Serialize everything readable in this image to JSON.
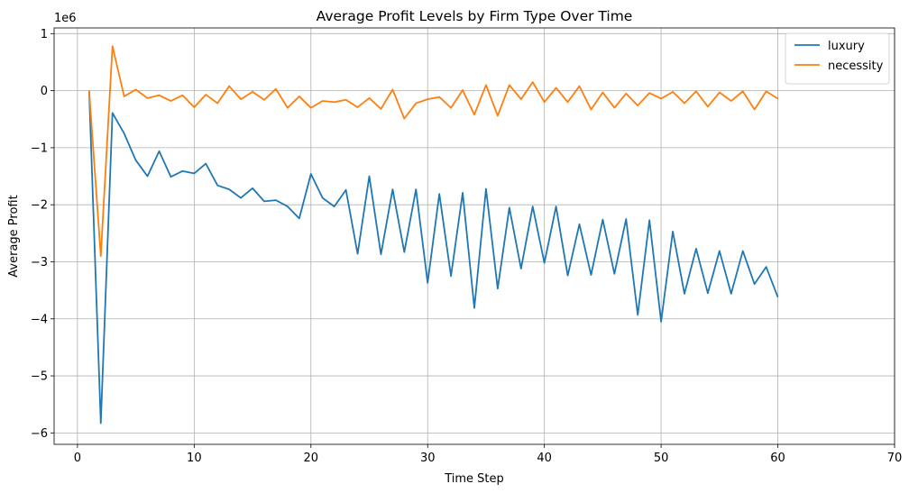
{
  "chart_data": {
    "type": "line",
    "title": "Average Profit Levels by Firm Type Over Time",
    "xlabel": "Time Step",
    "ylabel": "Average Profit",
    "y_offset_text": "1e6",
    "xlim": [
      -2,
      70
    ],
    "ylim": [
      -6.2,
      1.1
    ],
    "x_ticks": [
      0,
      10,
      20,
      30,
      40,
      50,
      60,
      70
    ],
    "y_ticks": [
      1,
      0,
      -1,
      -2,
      -3,
      -4,
      -5,
      -6
    ],
    "x_tick_labels": [
      "0",
      "10",
      "20",
      "30",
      "40",
      "50",
      "60",
      "70"
    ],
    "y_tick_labels": [
      "1",
      "0",
      "−1",
      "−2",
      "−3",
      "−4",
      "−5",
      "−6"
    ],
    "grid": true,
    "legend_position": "top-right",
    "x": [
      1,
      2,
      3,
      4,
      5,
      6,
      7,
      8,
      9,
      10,
      11,
      12,
      13,
      14,
      15,
      16,
      17,
      18,
      19,
      20,
      21,
      22,
      23,
      24,
      25,
      26,
      27,
      28,
      29,
      30,
      31,
      32,
      33,
      34,
      35,
      36,
      37,
      38,
      39,
      40,
      41,
      42,
      43,
      44,
      45,
      46,
      47,
      48,
      49,
      50,
      51,
      52,
      53,
      54,
      55,
      56,
      57,
      58,
      59,
      60
    ],
    "series": [
      {
        "name": "luxury",
        "color": "#1f77b4",
        "values": [
          0.0,
          -5.83,
          -0.39,
          -0.75,
          -1.22,
          -1.5,
          -1.06,
          -1.51,
          -1.41,
          -1.45,
          -1.28,
          -1.66,
          -1.73,
          -1.88,
          -1.71,
          -1.94,
          -1.92,
          -2.03,
          -2.24,
          -1.46,
          -1.88,
          -2.03,
          -1.74,
          -2.86,
          -1.5,
          -2.87,
          -1.73,
          -2.83,
          -1.73,
          -3.37,
          -1.81,
          -3.25,
          -1.79,
          -3.81,
          -1.72,
          -3.47,
          -2.05,
          -3.12,
          -2.03,
          -3.02,
          -2.03,
          -3.24,
          -2.34,
          -3.23,
          -2.26,
          -3.21,
          -2.25,
          -3.93,
          -2.27,
          -4.05,
          -2.47,
          -3.56,
          -2.77,
          -3.55,
          -2.81,
          -3.56,
          -2.81,
          -3.39,
          -3.09,
          -3.62
        ]
      },
      {
        "name": "necessity",
        "color": "#ff7f0e",
        "values": [
          0.0,
          -2.9,
          0.78,
          -0.1,
          0.02,
          -0.13,
          -0.08,
          -0.18,
          -0.08,
          -0.29,
          -0.07,
          -0.22,
          0.08,
          -0.15,
          -0.02,
          -0.16,
          0.03,
          -0.3,
          -0.1,
          -0.3,
          -0.18,
          -0.2,
          -0.16,
          -0.29,
          -0.13,
          -0.32,
          0.02,
          -0.49,
          -0.22,
          -0.15,
          -0.11,
          -0.3,
          0.01,
          -0.42,
          0.1,
          -0.44,
          0.1,
          -0.15,
          0.15,
          -0.2,
          0.05,
          -0.2,
          0.08,
          -0.33,
          -0.03,
          -0.3,
          -0.05,
          -0.26,
          -0.04,
          -0.14,
          -0.02,
          -0.22,
          -0.01,
          -0.28,
          -0.03,
          -0.18,
          -0.01,
          -0.33,
          -0.01,
          -0.14
        ]
      }
    ]
  }
}
